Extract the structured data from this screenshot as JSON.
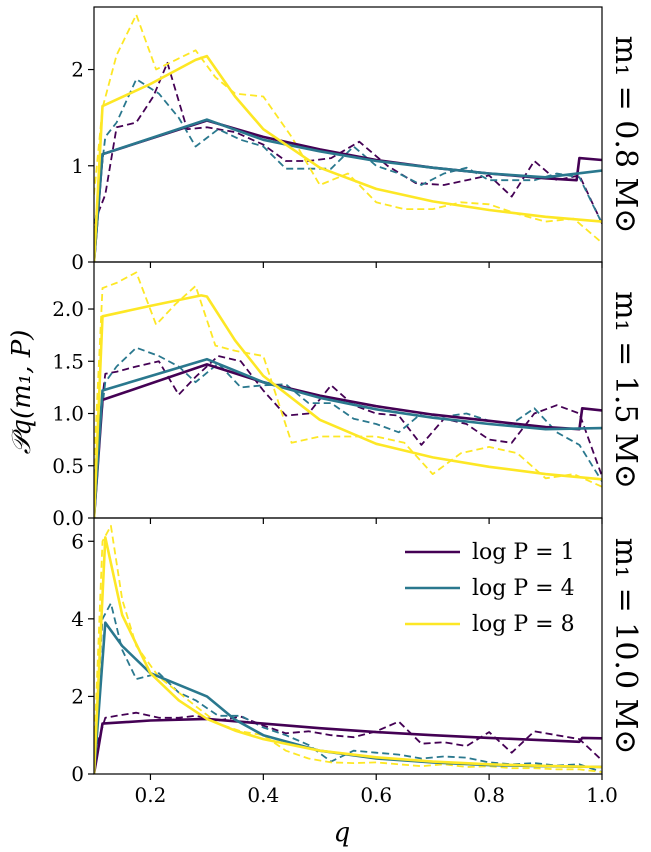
{
  "colors": {
    "logP1": "#440154",
    "logP4": "#2a788e",
    "logP8": "#fde725"
  },
  "chart_data": {
    "type": "line",
    "xlabel": "q",
    "ylabel": "𝒫q(m₁, P)",
    "xlim": [
      0.1,
      1.0
    ],
    "xticks": [
      0.2,
      0.4,
      0.6,
      0.8,
      1.0
    ],
    "xtick_labels": [
      "0.2",
      "0.4",
      "0.6",
      "0.8",
      "1.0"
    ],
    "grid": false,
    "legend": {
      "position": "top-right of bottom panel",
      "entries": [
        {
          "key": "logP1",
          "label": "log P = 1"
        },
        {
          "key": "logP4",
          "label": "log P = 4"
        },
        {
          "key": "logP8",
          "label": "log P = 8"
        }
      ]
    },
    "line_styles": {
      "model": "solid",
      "sample": "dashed"
    },
    "panels": [
      {
        "label": "m₁ = 0.8 M⊙",
        "ylim": [
          0,
          2.65
        ],
        "yticks": [
          0,
          1,
          2
        ],
        "ytick_labels": [
          "0",
          "1",
          "2"
        ],
        "series": [
          {
            "key": "logP1",
            "style": "solid",
            "x": [
              0.1,
              0.115,
              0.3,
              0.4,
              0.5,
              0.6,
              0.7,
              0.8,
              0.9,
              0.955,
              0.96,
              1.0
            ],
            "y": [
              0,
              1.12,
              1.47,
              1.3,
              1.17,
              1.06,
              0.98,
              0.92,
              0.87,
              0.85,
              1.08,
              1.06
            ]
          },
          {
            "key": "logP1",
            "style": "dashed",
            "x": [
              0.1,
              0.12,
              0.14,
              0.175,
              0.205,
              0.23,
              0.265,
              0.3,
              0.35,
              0.4,
              0.44,
              0.48,
              0.52,
              0.57,
              0.62,
              0.67,
              0.72,
              0.76,
              0.8,
              0.84,
              0.88,
              0.92,
              0.96,
              1.0
            ],
            "y": [
              0.4,
              0.7,
              1.4,
              1.45,
              1.72,
              2.07,
              1.38,
              1.4,
              1.35,
              1.22,
              1.05,
              1.05,
              1.08,
              1.25,
              1.0,
              0.82,
              0.8,
              0.85,
              0.9,
              0.68,
              1.05,
              0.85,
              0.9,
              0.4
            ]
          },
          {
            "key": "logP4",
            "style": "solid",
            "x": [
              0.1,
              0.115,
              0.3,
              0.4,
              0.5,
              0.6,
              0.7,
              0.8,
              0.9,
              1.0
            ],
            "y": [
              0,
              1.12,
              1.48,
              1.27,
              1.15,
              1.05,
              0.98,
              0.92,
              0.88,
              0.95
            ]
          },
          {
            "key": "logP4",
            "style": "dashed",
            "x": [
              0.1,
              0.12,
              0.14,
              0.175,
              0.215,
              0.25,
              0.28,
              0.32,
              0.36,
              0.4,
              0.44,
              0.48,
              0.52,
              0.56,
              0.6,
              0.64,
              0.68,
              0.72,
              0.76,
              0.8,
              0.84,
              0.88,
              0.92,
              0.96,
              1.0
            ],
            "y": [
              0.3,
              1.3,
              1.45,
              1.9,
              1.75,
              1.5,
              1.2,
              1.38,
              1.27,
              1.2,
              0.97,
              0.97,
              0.97,
              1.2,
              1.0,
              0.92,
              0.8,
              0.92,
              0.98,
              0.85,
              0.85,
              0.85,
              0.92,
              0.88,
              0.4
            ]
          },
          {
            "key": "logP8",
            "style": "solid",
            "x": [
              0.1,
              0.115,
              0.2,
              0.28,
              0.3,
              0.35,
              0.4,
              0.5,
              0.6,
              0.7,
              0.8,
              0.9,
              1.0
            ],
            "y": [
              0,
              1.62,
              1.85,
              2.1,
              2.14,
              1.72,
              1.38,
              0.98,
              0.76,
              0.63,
              0.54,
              0.47,
              0.42
            ]
          },
          {
            "key": "logP8",
            "style": "dashed",
            "x": [
              0.1,
              0.115,
              0.14,
              0.175,
              0.21,
              0.245,
              0.28,
              0.315,
              0.35,
              0.4,
              0.45,
              0.5,
              0.55,
              0.6,
              0.65,
              0.7,
              0.75,
              0.8,
              0.85,
              0.9,
              0.95,
              1.0
            ],
            "y": [
              0.7,
              1.6,
              2.15,
              2.57,
              2.0,
              2.1,
              2.2,
              1.92,
              1.75,
              1.72,
              1.3,
              0.8,
              0.92,
              0.62,
              0.55,
              0.55,
              0.62,
              0.6,
              0.5,
              0.42,
              0.45,
              0.2
            ]
          }
        ]
      },
      {
        "label": "m₁ = 1.5 M⊙",
        "ylim": [
          0,
          2.45
        ],
        "yticks": [
          0,
          0.5,
          1.0,
          1.5,
          2.0
        ],
        "ytick_labels": [
          "0.0",
          "0.5",
          "1.0",
          "1.5",
          "2.0"
        ],
        "series": [
          {
            "key": "logP1",
            "style": "solid",
            "x": [
              0.1,
              0.115,
              0.3,
              0.4,
              0.5,
              0.6,
              0.7,
              0.8,
              0.9,
              0.96,
              0.965,
              1.0
            ],
            "y": [
              0,
              1.13,
              1.47,
              1.3,
              1.17,
              1.07,
              0.99,
              0.93,
              0.87,
              0.85,
              1.05,
              1.03
            ]
          },
          {
            "key": "logP1",
            "style": "dashed",
            "x": [
              0.1,
              0.12,
              0.14,
              0.175,
              0.215,
              0.25,
              0.28,
              0.32,
              0.36,
              0.4,
              0.44,
              0.48,
              0.52,
              0.56,
              0.6,
              0.64,
              0.68,
              0.72,
              0.76,
              0.8,
              0.84,
              0.88,
              0.92,
              0.96,
              1.0
            ],
            "y": [
              0.5,
              1.38,
              1.4,
              1.45,
              1.5,
              1.18,
              1.35,
              1.55,
              1.5,
              1.22,
              0.98,
              1.0,
              1.27,
              1.08,
              1.0,
              0.98,
              0.7,
              0.95,
              0.9,
              0.75,
              0.72,
              1.0,
              1.08,
              1.0,
              0.4
            ]
          },
          {
            "key": "logP4",
            "style": "solid",
            "x": [
              0.1,
              0.115,
              0.3,
              0.4,
              0.5,
              0.6,
              0.7,
              0.8,
              0.9,
              1.0
            ],
            "y": [
              0,
              1.22,
              1.52,
              1.3,
              1.15,
              1.04,
              0.96,
              0.9,
              0.85,
              0.86
            ]
          },
          {
            "key": "logP4",
            "style": "dashed",
            "x": [
              0.1,
              0.12,
              0.14,
              0.175,
              0.215,
              0.25,
              0.28,
              0.32,
              0.36,
              0.4,
              0.44,
              0.48,
              0.52,
              0.56,
              0.6,
              0.64,
              0.68,
              0.72,
              0.76,
              0.8,
              0.84,
              0.88,
              0.92,
              0.96,
              1.0
            ],
            "y": [
              0.4,
              1.3,
              1.45,
              1.63,
              1.55,
              1.45,
              1.3,
              1.48,
              1.25,
              1.27,
              1.28,
              1.1,
              1.1,
              0.95,
              0.9,
              0.82,
              1.0,
              0.97,
              1.0,
              0.93,
              0.9,
              1.05,
              0.82,
              0.7,
              0.35
            ]
          },
          {
            "key": "logP8",
            "style": "solid",
            "x": [
              0.1,
              0.115,
              0.2,
              0.29,
              0.3,
              0.35,
              0.4,
              0.5,
              0.6,
              0.7,
              0.8,
              0.9,
              1.0
            ],
            "y": [
              0,
              1.93,
              2.03,
              2.13,
              2.12,
              1.7,
              1.36,
              0.94,
              0.71,
              0.58,
              0.49,
              0.42,
              0.37
            ]
          },
          {
            "key": "logP8",
            "style": "dashed",
            "x": [
              0.1,
              0.115,
              0.14,
              0.175,
              0.21,
              0.245,
              0.28,
              0.315,
              0.35,
              0.4,
              0.45,
              0.5,
              0.55,
              0.6,
              0.65,
              0.7,
              0.75,
              0.8,
              0.85,
              0.9,
              0.95,
              1.0
            ],
            "y": [
              0.5,
              2.2,
              2.25,
              2.35,
              1.85,
              2.05,
              2.22,
              1.65,
              1.6,
              1.55,
              0.72,
              0.78,
              0.78,
              0.78,
              0.72,
              0.42,
              0.62,
              0.68,
              0.62,
              0.38,
              0.42,
              0.3
            ]
          }
        ]
      },
      {
        "label": "m₁ = 10.0 M⊙",
        "ylim": [
          0,
          6.6
        ],
        "yticks": [
          0,
          2,
          4,
          6
        ],
        "ytick_labels": [
          "0",
          "2",
          "4",
          "6"
        ],
        "series": [
          {
            "key": "logP1",
            "style": "solid",
            "x": [
              0.1,
              0.115,
              0.2,
              0.3,
              0.4,
              0.5,
              0.6,
              0.7,
              0.8,
              0.9,
              0.96,
              0.965,
              1.0
            ],
            "y": [
              0,
              1.3,
              1.38,
              1.42,
              1.3,
              1.18,
              1.08,
              1.0,
              0.93,
              0.87,
              0.83,
              0.93,
              0.92
            ]
          },
          {
            "key": "logP1",
            "style": "dashed",
            "x": [
              0.1,
              0.12,
              0.14,
              0.175,
              0.215,
              0.25,
              0.28,
              0.32,
              0.36,
              0.4,
              0.44,
              0.48,
              0.52,
              0.56,
              0.6,
              0.64,
              0.68,
              0.72,
              0.76,
              0.8,
              0.84,
              0.88,
              0.92,
              0.96,
              1.0
            ],
            "y": [
              0.5,
              1.45,
              1.5,
              1.58,
              1.45,
              1.45,
              1.5,
              1.38,
              1.48,
              1.25,
              1.05,
              1.1,
              1.0,
              0.95,
              1.1,
              1.35,
              0.78,
              0.82,
              0.72,
              1.08,
              0.55,
              1.1,
              1.0,
              0.9,
              0.35
            ]
          },
          {
            "key": "logP4",
            "style": "solid",
            "x": [
              0.1,
              0.12,
              0.15,
              0.2,
              0.25,
              0.3,
              0.35,
              0.4,
              0.5,
              0.6,
              0.7,
              0.8,
              0.9,
              1.0
            ],
            "y": [
              0,
              3.9,
              3.3,
              2.6,
              2.3,
              2.0,
              1.4,
              1.0,
              0.6,
              0.4,
              0.3,
              0.23,
              0.2,
              0.18
            ]
          },
          {
            "key": "logP4",
            "style": "dashed",
            "x": [
              0.1,
              0.115,
              0.13,
              0.15,
              0.175,
              0.215,
              0.25,
              0.28,
              0.32,
              0.36,
              0.4,
              0.44,
              0.48,
              0.52,
              0.56,
              0.6,
              0.64,
              0.68,
              0.72,
              0.76,
              0.8,
              0.84,
              0.88,
              0.92,
              0.96,
              1.0
            ],
            "y": [
              0.3,
              4.0,
              4.4,
              3.2,
              2.45,
              2.6,
              2.1,
              1.9,
              1.5,
              1.5,
              1.2,
              1.0,
              0.75,
              0.32,
              0.6,
              0.55,
              0.5,
              0.4,
              0.45,
              0.42,
              0.3,
              0.25,
              0.28,
              0.22,
              0.25,
              0.05
            ]
          },
          {
            "key": "logP8",
            "style": "solid",
            "x": [
              0.1,
              0.12,
              0.15,
              0.2,
              0.25,
              0.3,
              0.35,
              0.4,
              0.5,
              0.6,
              0.7,
              0.8,
              0.9,
              1.0
            ],
            "y": [
              0,
              6.1,
              4.1,
              2.6,
              1.9,
              1.42,
              1.12,
              0.9,
              0.6,
              0.43,
              0.32,
              0.25,
              0.21,
              0.18
            ]
          },
          {
            "key": "logP8",
            "style": "dashed",
            "x": [
              0.1,
              0.115,
              0.13,
              0.15,
              0.175,
              0.215,
              0.25,
              0.28,
              0.32,
              0.36,
              0.4,
              0.44,
              0.48,
              0.52,
              0.56,
              0.6,
              0.64,
              0.68,
              0.72,
              0.76,
              0.8,
              0.84,
              0.88,
              0.92,
              0.96,
              1.0
            ],
            "y": [
              0.5,
              6.0,
              6.4,
              4.5,
              3.3,
              2.5,
              2.1,
              1.75,
              1.3,
              1.1,
              1.0,
              0.6,
              0.4,
              0.3,
              0.28,
              0.3,
              0.25,
              0.2,
              0.25,
              0.18,
              0.2,
              0.15,
              0.15,
              0.12,
              0.12,
              0.05
            ]
          }
        ]
      }
    ]
  }
}
